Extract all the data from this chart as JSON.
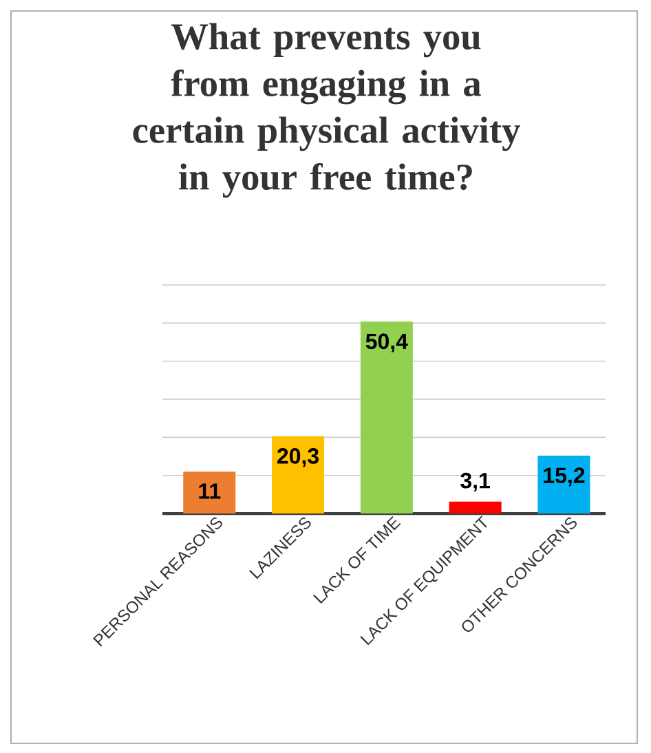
{
  "chart_data": {
    "type": "bar",
    "title": "What prevents you from engaging in a certain physical activity in your free time?",
    "categories": [
      "PERSONAL REASONS",
      "LAZINESS",
      "LACK OF TIME",
      "LACK OF EQUIPMENT",
      "OTHER CONCERNS"
    ],
    "values": [
      11,
      20.3,
      50.4,
      3.1,
      15.2
    ],
    "colors": [
      "#ed7d31",
      "#ffc000",
      "#92d050",
      "#ff0000",
      "#00b0f0"
    ],
    "value_labels": [
      "11",
      "20,3",
      "50,4",
      "3,1",
      "15,2"
    ],
    "ylim": [
      0,
      60
    ],
    "yticks": [
      {
        "value": 0,
        "label": null
      },
      {
        "value": 10,
        "label": null
      },
      {
        "value": 20,
        "label": null
      },
      {
        "value": 30,
        "label": null
      },
      {
        "value": 40,
        "label": null
      },
      {
        "value": 50,
        "label": null
      },
      {
        "value": 60,
        "label": null
      }
    ],
    "grid": "y",
    "tick_labels": "x"
  }
}
